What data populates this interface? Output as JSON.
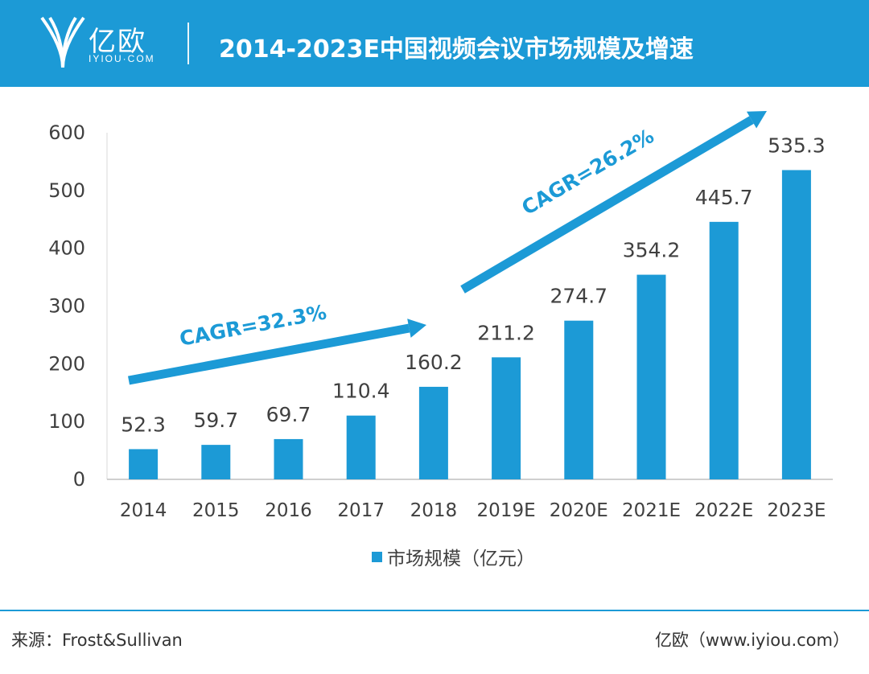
{
  "header": {
    "brand_name": "亿欧",
    "brand_sub": "IYIOU·COM",
    "title": "2014-2023E中国视频会议市场规模及增速"
  },
  "chart_data": {
    "type": "bar",
    "title": "2014-2023E中国视频会议市场规模及增速",
    "categories": [
      "2014",
      "2015",
      "2016",
      "2017",
      "2018",
      "2019E",
      "2020E",
      "2021E",
      "2022E",
      "2023E"
    ],
    "series": [
      {
        "name": "市场规模（亿元）",
        "values": [
          52.3,
          59.7,
          69.7,
          110.4,
          160.2,
          211.2,
          274.7,
          354.2,
          445.7,
          535.3
        ]
      }
    ],
    "data_labels": [
      "52.3",
      "59.7",
      "69.7",
      "110.4",
      "160.2",
      "211.2",
      "274.7",
      "354.2",
      "445.7",
      "535.3"
    ],
    "ylim": [
      0,
      600
    ],
    "yticks": [
      0,
      100,
      200,
      300,
      400,
      500,
      600
    ],
    "legend_position": "bottom",
    "grid": false,
    "bar_color": "#1c9ad6",
    "annotations": [
      {
        "text": "CAGR=32.3%",
        "from_category": "2014",
        "to_category": "2018"
      },
      {
        "text": "CAGR=26.2%",
        "from_category": "2019E",
        "to_category": "2023E"
      }
    ]
  },
  "footer": {
    "source": "来源：Frost&Sullivan",
    "credit": "亿欧（www.iyiou.com）"
  }
}
